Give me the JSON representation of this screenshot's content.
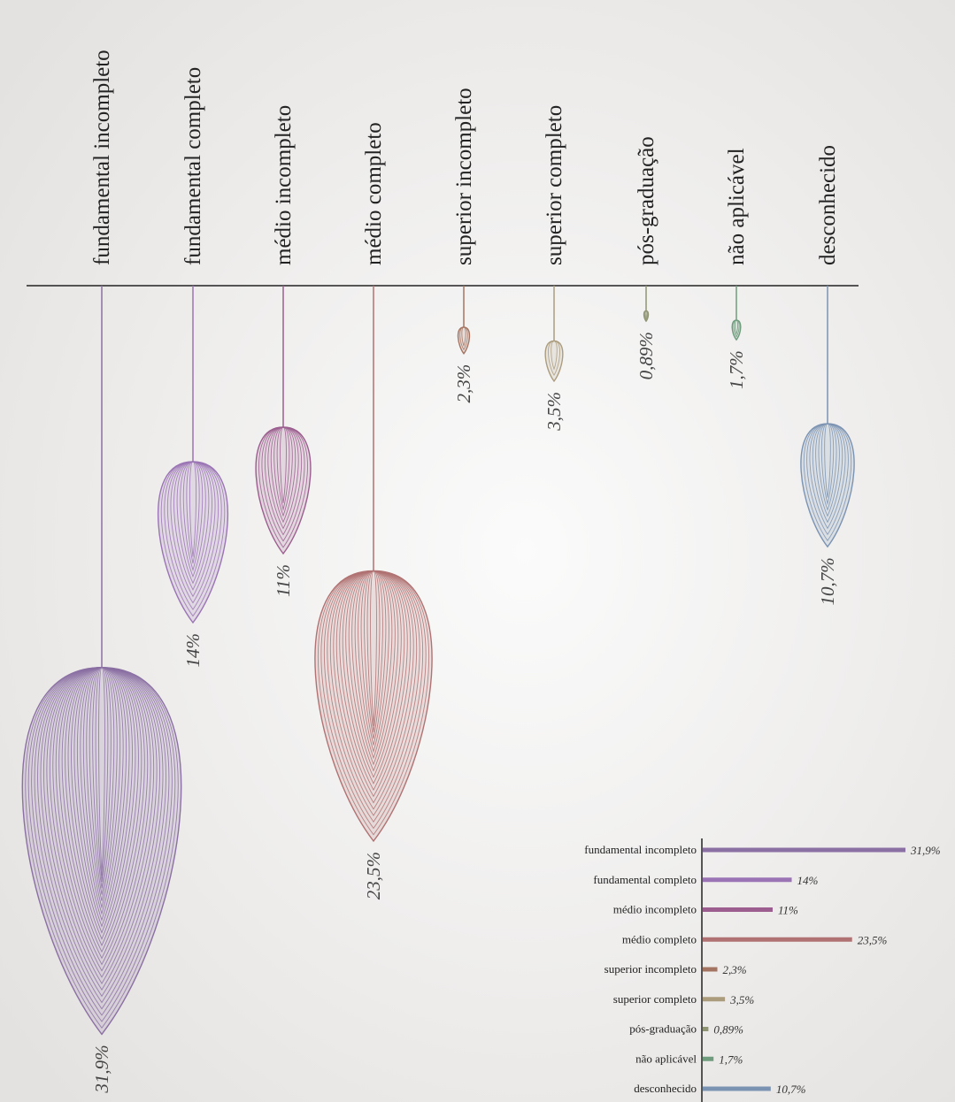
{
  "chart_data": {
    "type": "teardrop",
    "categories": [
      "fundamental incompleto",
      "fundamental completo",
      "médio incompleto",
      "médio completo",
      "superior incompleto",
      "superior completo",
      "pós-graduação",
      "não aplicável",
      "desconhecido"
    ],
    "values": [
      31.9,
      14,
      11,
      23.5,
      2.3,
      3.5,
      0.89,
      1.7,
      10.7
    ],
    "value_labels": [
      "31,9%",
      "14%",
      "11%",
      "23,5%",
      "2,3%",
      "3,5%",
      "0,89%",
      "1,7%",
      "10,7%"
    ],
    "colors": [
      "#8b70a3",
      "#9a74b4",
      "#9b5e8e",
      "#b07272",
      "#a47462",
      "#ab9c7e",
      "#8f9472",
      "#6e9c7c",
      "#7b93b2"
    ]
  }
}
